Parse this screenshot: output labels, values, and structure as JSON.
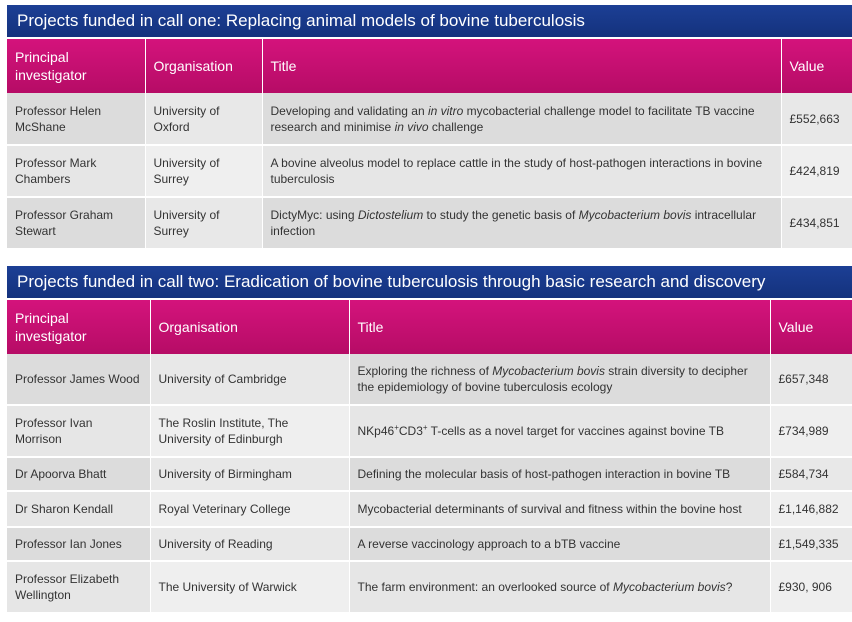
{
  "call_one": {
    "heading": "Projects funded in call one: Replacing animal models of bovine tuberculosis",
    "headers": [
      "Principal investigator",
      "Organisation",
      "Title",
      "Value"
    ],
    "rows": [
      {
        "pi": "Professor Helen McShane",
        "org": "University of Oxford",
        "title": [
          "Developing and validating an ",
          "in vitro",
          " mycobacterial challenge model to facilitate TB vaccine research and minimise ",
          "in vivo",
          " challenge"
        ],
        "value": "£552,663"
      },
      {
        "pi": "Professor Mark Chambers",
        "org": "University of Surrey",
        "title": [
          "A bovine alveolus model to replace cattle in the study of host-pathogen interactions in bovine tuberculosis"
        ],
        "value": "£424,819"
      },
      {
        "pi": "Professor Graham Stewart",
        "org": "University of Surrey",
        "title": [
          "DictyMyc: using ",
          "Dictostelium",
          " to study the genetic basis of ",
          "Mycobacterium bovis",
          " intracellular infection"
        ],
        "value": "£434,851"
      }
    ]
  },
  "call_two": {
    "heading": "Projects funded in call two: Eradication of bovine tuberculosis through basic research and discovery",
    "headers": [
      "Principal investigator",
      "Organisation",
      "Title",
      "Value"
    ],
    "rows": [
      {
        "pi": "Professor James Wood",
        "org": "University of Cambridge",
        "title": [
          "Exploring the richness of ",
          "Mycobacterium bovis",
          " strain diversity to decipher the epidemiology of bovine tuberculosis ecology"
        ],
        "value": "£657,348"
      },
      {
        "pi": "Professor Ivan Morrison",
        "org": "The Roslin Institute, The University of Edinburgh",
        "title_parts": {
          "a": "NKp46",
          "sup1": "+",
          "b": "CD3",
          "sup2": "+",
          "c": " T-cells as a novel target for vaccines against bovine TB"
        },
        "value": "£734,989"
      },
      {
        "pi": "Dr Apoorva Bhatt",
        "org": "University of Birmingham",
        "title": [
          "Defining the molecular basis of host-pathogen interaction in bovine TB"
        ],
        "value": "£584,734"
      },
      {
        "pi": "Dr Sharon Kendall",
        "org": "Royal Veterinary College",
        "title": [
          "Mycobacterial determinants of survival and fitness within the bovine host"
        ],
        "value": "£1,146,882"
      },
      {
        "pi": "Professor Ian Jones",
        "org": "University of Reading",
        "title": [
          "A reverse vaccinology approach to a bTB vaccine"
        ],
        "value": "£1,549,335"
      },
      {
        "pi": "Professor Elizabeth Wellington",
        "org": "The University of Warwick",
        "title": [
          "The farm environment: an overlooked source of ",
          "Mycobacterium bovis",
          "?"
        ],
        "value": "£930, 906"
      }
    ]
  },
  "colors": {
    "banner": "#1c3f95",
    "header": "#c80f72",
    "row_odd": "#dcdcdc",
    "row_even": "#e6e6e6"
  }
}
